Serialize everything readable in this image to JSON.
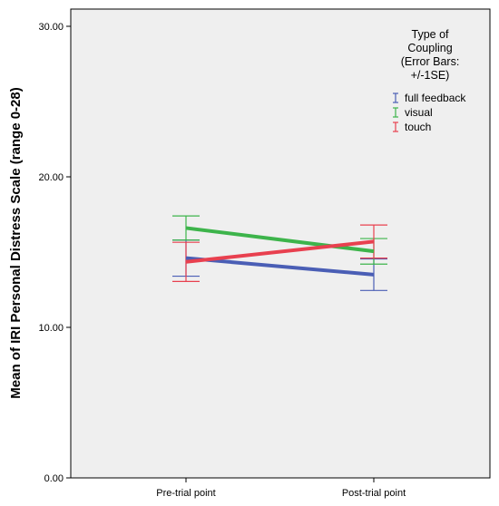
{
  "chart_data": {
    "type": "line",
    "ylabel": "Mean of IRI Personal Distress Scale (range 0-28)",
    "xlabel": "",
    "categories": [
      "Pre-trial point",
      "Post-trial point"
    ],
    "ylim": [
      0,
      30
    ],
    "yticks": [
      "0.00",
      "10.00",
      "20.00",
      "30.00"
    ],
    "grid": false,
    "background": "#efefef",
    "legend": {
      "title": [
        "Type of",
        "Coupling",
        "(Error Bars:",
        "+/-1SE)"
      ],
      "placement": "top-right"
    },
    "series": [
      {
        "name": "full feedback",
        "color": "#4a5eb5",
        "values": [
          14.6,
          13.5
        ],
        "error": [
          1.2,
          1.05
        ]
      },
      {
        "name": "visual",
        "color": "#3db44b",
        "values": [
          16.6,
          15.05
        ],
        "error": [
          0.8,
          0.85
        ]
      },
      {
        "name": "touch",
        "color": "#e8404f",
        "values": [
          14.35,
          15.7
        ],
        "error": [
          1.3,
          1.1
        ]
      }
    ]
  }
}
